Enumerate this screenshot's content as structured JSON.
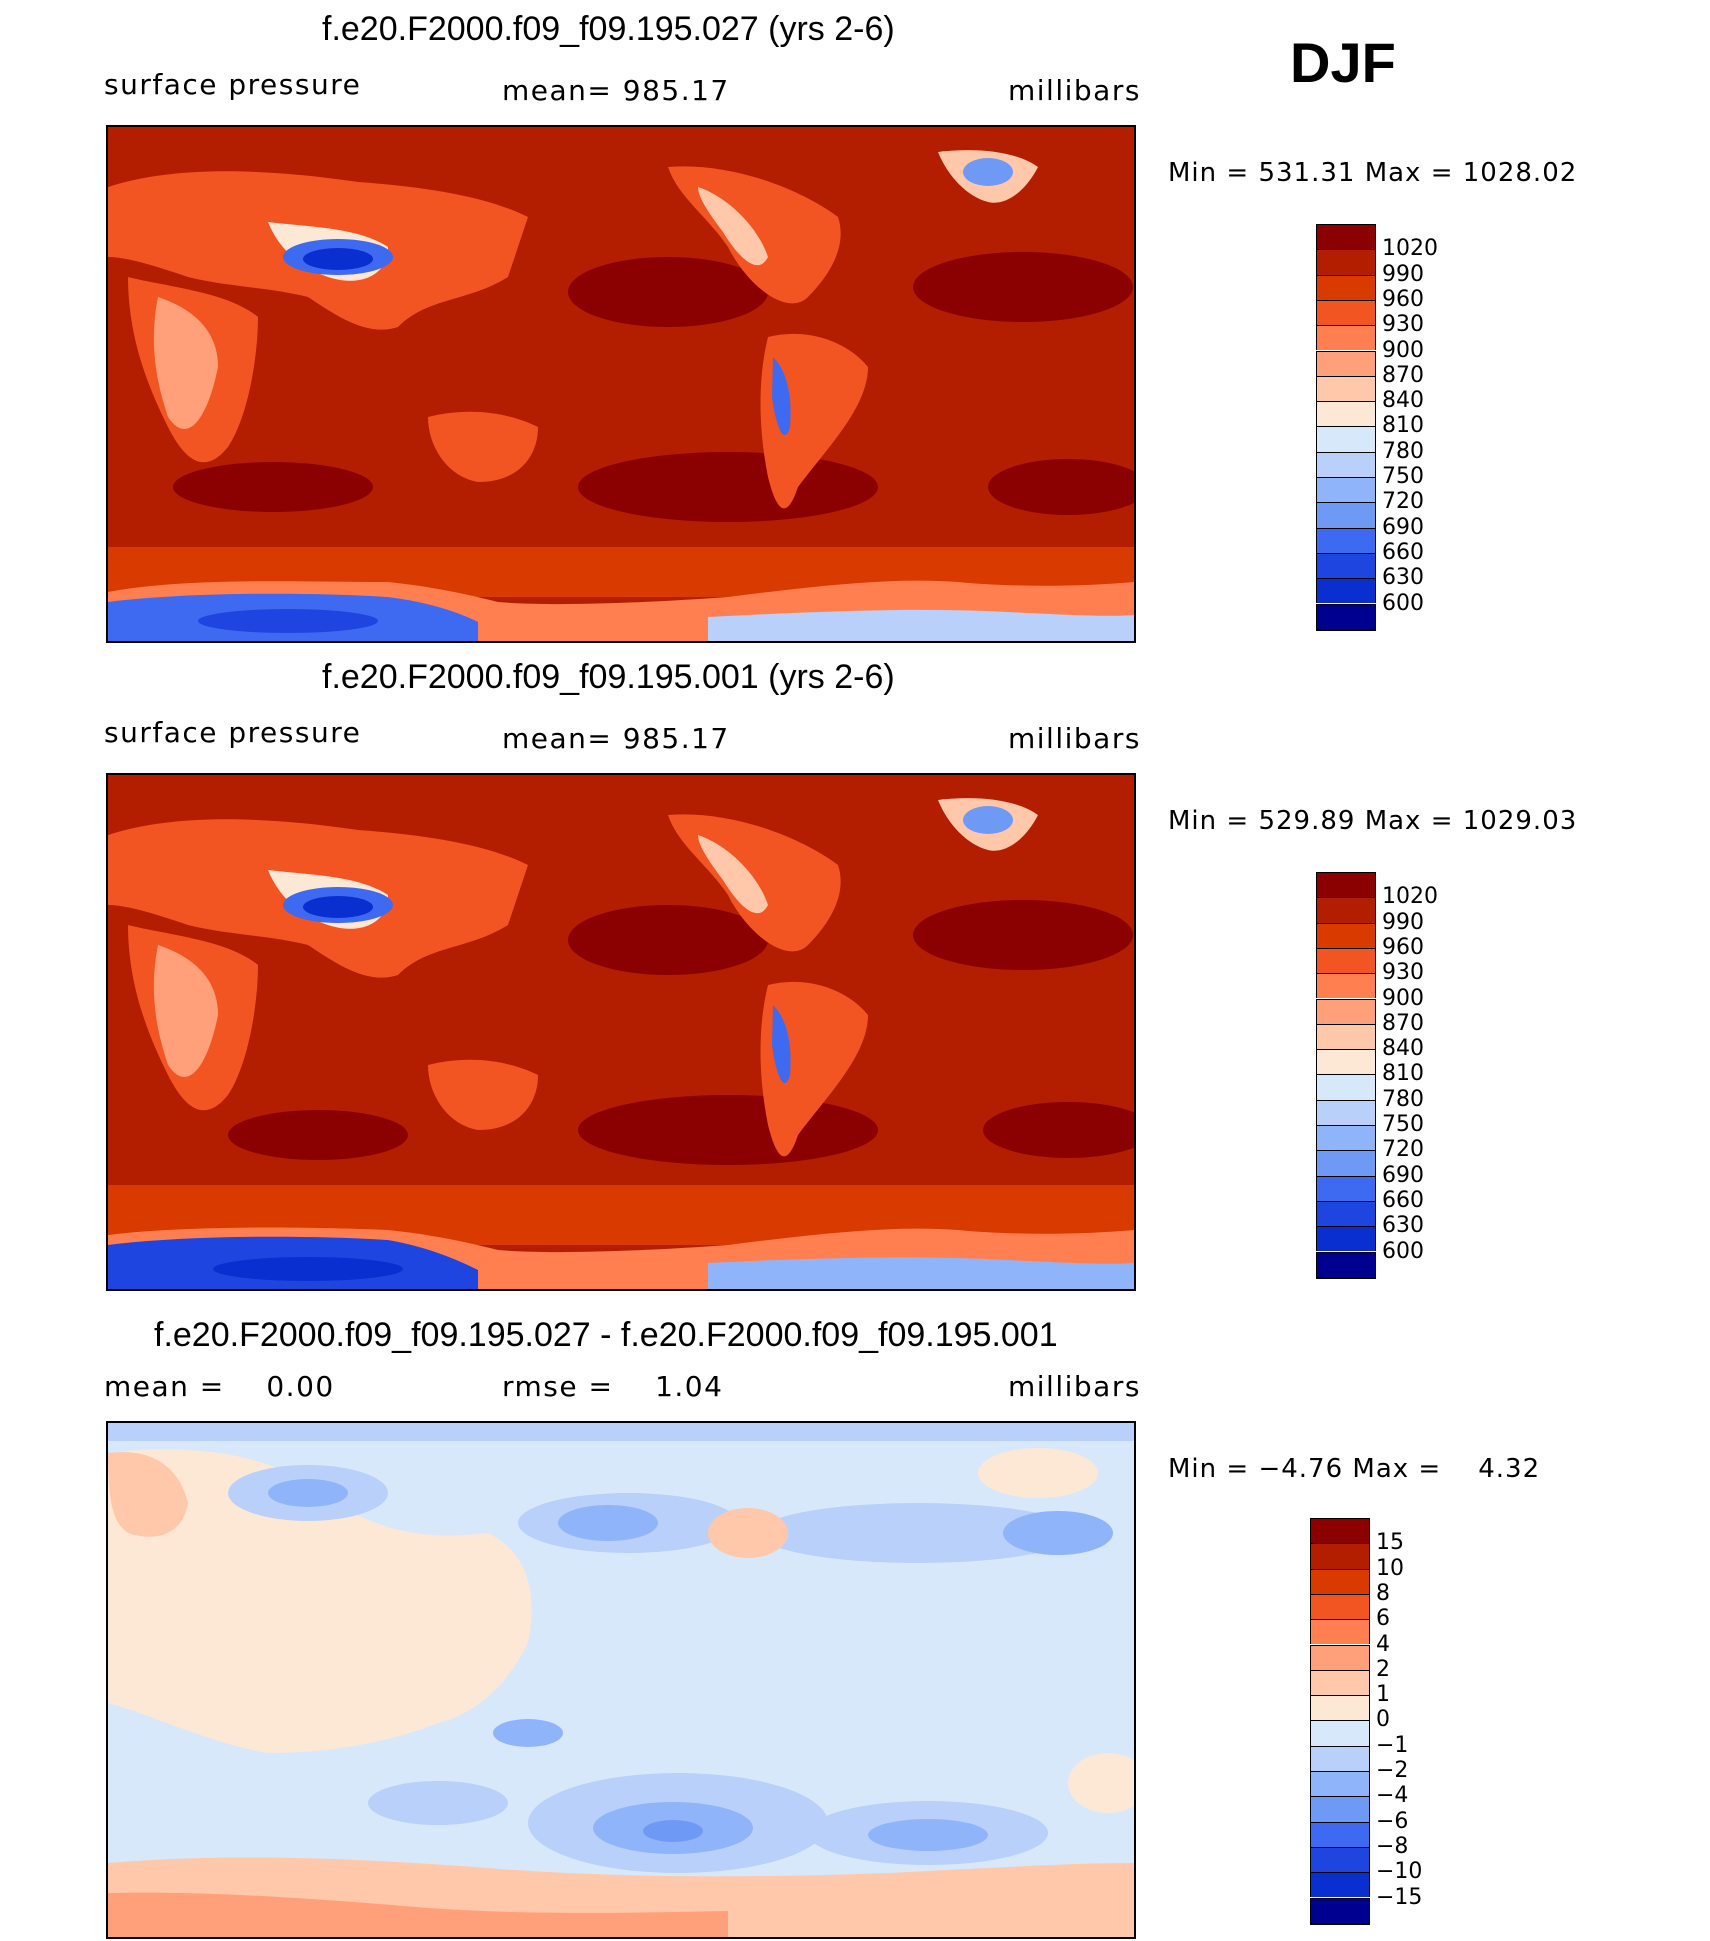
{
  "season": "DJF",
  "panels": [
    {
      "title": "f.e20.F2000.f09_f09.195.027 (yrs 2-6)",
      "left_label": "surface pressure",
      "center_label": "mean= 985.17",
      "units": "millibars",
      "minmax": "Min = 531.31 Max = 1028.02"
    },
    {
      "title": "f.e20.F2000.f09_f09.195.001 (yrs 2-6)",
      "left_label": "surface pressure",
      "center_label": "mean= 985.17",
      "units": "millibars",
      "minmax": "Min = 529.89 Max = 1029.03"
    },
    {
      "title": "f.e20.F2000.f09_f09.195.027 - f.e20.F2000.f09_f09.195.001",
      "left_label": "mean =    0.00",
      "center_label": "rmse =    1.04",
      "units": "millibars",
      "minmax": "Min = −4.76 Max =    4.32"
    }
  ],
  "chart_data": [
    {
      "type": "heatmap",
      "title": "f.e20.F2000.f09_f09.195.027 (yrs 2-6)",
      "variable": "surface pressure",
      "units": "millibars",
      "mean": 985.17,
      "min": 531.31,
      "max": 1028.02,
      "colorbar": {
        "levels": [
          "1020",
          "990",
          "960",
          "930",
          "900",
          "870",
          "840",
          "810",
          "780",
          "750",
          "720",
          "690",
          "660",
          "630",
          "600"
        ],
        "colors": [
          "#8b0000",
          "#b31d00",
          "#d83a00",
          "#f25522",
          "#ff7f50",
          "#ffa07a",
          "#ffc8aa",
          "#fde8d6",
          "#d8e8fb",
          "#b8d0fa",
          "#90b4fa",
          "#6e9af6",
          "#3d6af0",
          "#1f45e0",
          "#0a2fd0",
          "#000090"
        ]
      }
    },
    {
      "type": "heatmap",
      "title": "f.e20.F2000.f09_f09.195.001 (yrs 2-6)",
      "variable": "surface pressure",
      "units": "millibars",
      "mean": 985.17,
      "min": 529.89,
      "max": 1029.03,
      "colorbar": {
        "levels": [
          "1020",
          "990",
          "960",
          "930",
          "900",
          "870",
          "840",
          "810",
          "780",
          "750",
          "720",
          "690",
          "660",
          "630",
          "600"
        ],
        "colors": [
          "#8b0000",
          "#b31d00",
          "#d83a00",
          "#f25522",
          "#ff7f50",
          "#ffa07a",
          "#ffc8aa",
          "#fde8d6",
          "#d8e8fb",
          "#b8d0fa",
          "#90b4fa",
          "#6e9af6",
          "#3d6af0",
          "#1f45e0",
          "#0a2fd0",
          "#000090"
        ]
      }
    },
    {
      "type": "heatmap",
      "title": "f.e20.F2000.f09_f09.195.027 - f.e20.F2000.f09_f09.195.001",
      "variable": "difference",
      "units": "millibars",
      "mean": 0.0,
      "rmse": 1.04,
      "min": -4.76,
      "max": 4.32,
      "colorbar": {
        "levels": [
          "15",
          "10",
          "8",
          "6",
          "4",
          "2",
          "1",
          "0",
          "−1",
          "−2",
          "−4",
          "−6",
          "−8",
          "−10",
          "−15"
        ],
        "colors": [
          "#8b0000",
          "#b31d00",
          "#d83a00",
          "#f25522",
          "#ff7f50",
          "#ffa07a",
          "#ffc8aa",
          "#fde8d6",
          "#d8e8fb",
          "#b8d0fa",
          "#90b4fa",
          "#6e9af6",
          "#3d6af0",
          "#1f45e0",
          "#0a2fd0",
          "#000090"
        ]
      }
    }
  ]
}
